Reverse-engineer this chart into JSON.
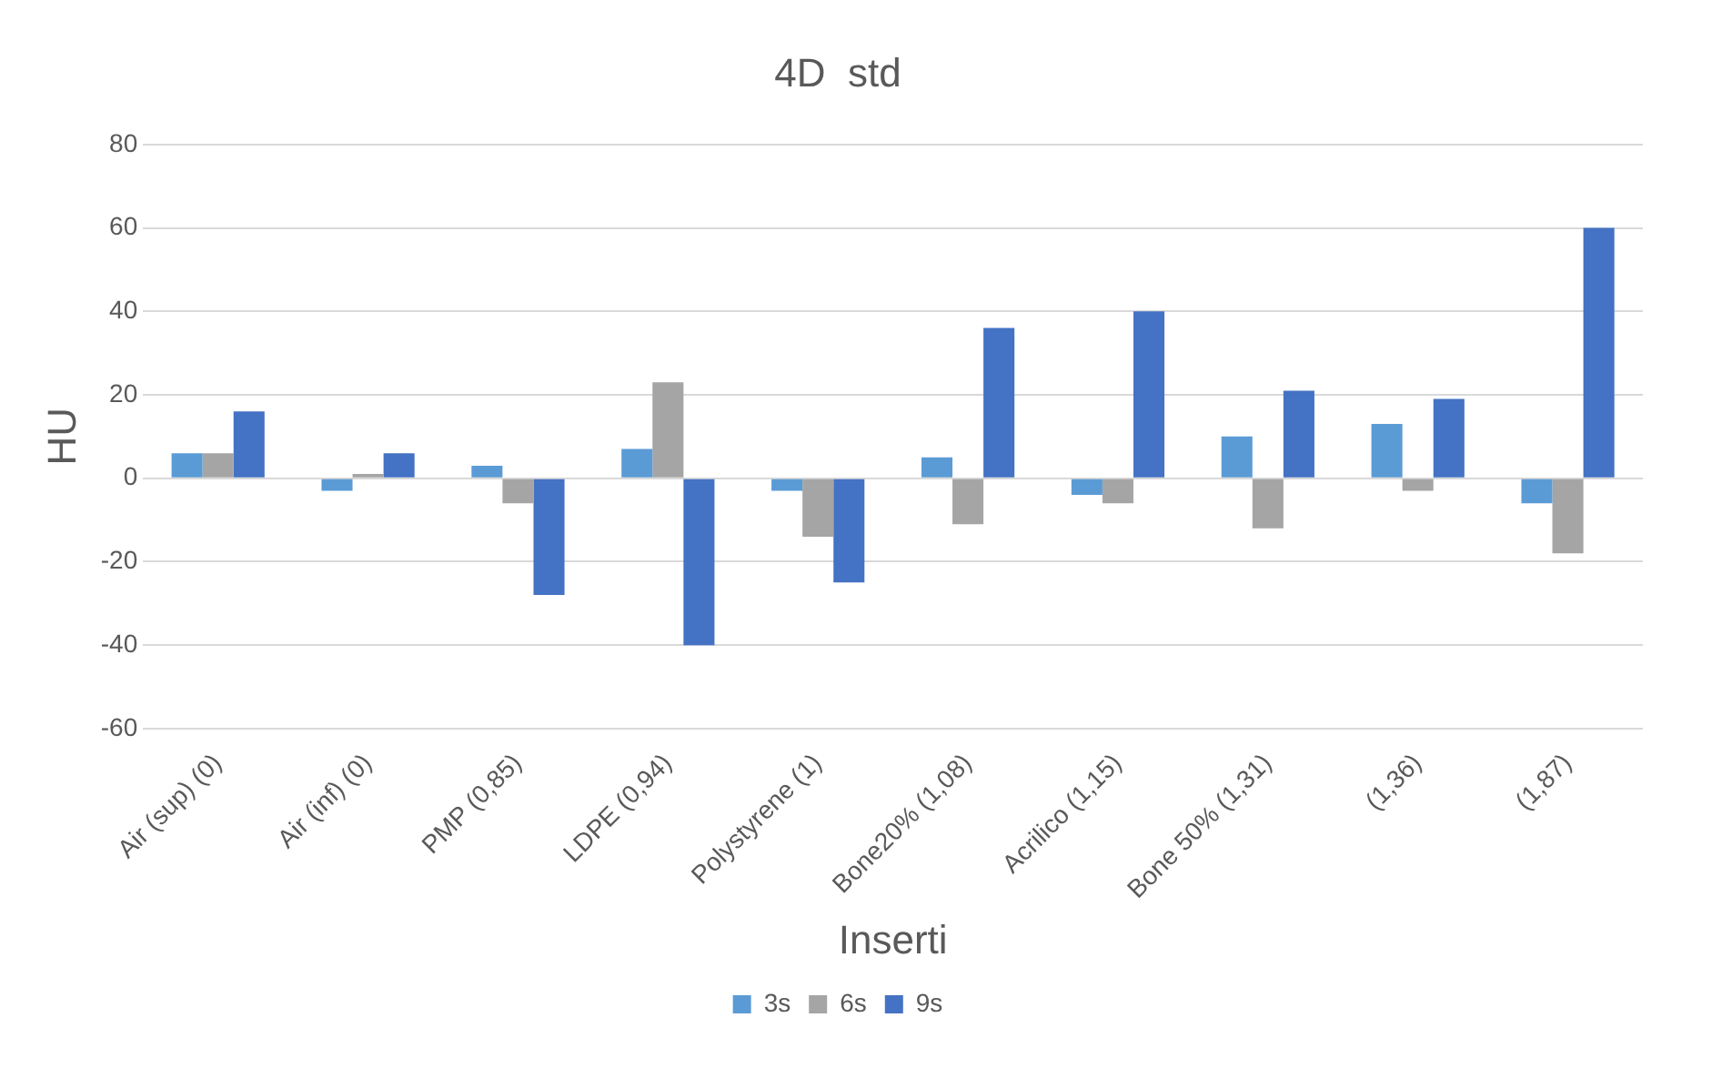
{
  "chart_data": {
    "type": "bar",
    "title": "4D  std",
    "xlabel": "Inserti",
    "ylabel": "HU",
    "categories": [
      "Air (sup) (0)",
      "Air (inf) (0)",
      "PMP (0,85)",
      "LDPE (0,94)",
      "Polystyrene (1)",
      "Bone20% (1,08)",
      "Acrilico (1,15)",
      "Bone 50% (1,31)",
      "(1,36)",
      "(1,87)"
    ],
    "series": [
      {
        "name": "3s",
        "color": "#5b9bd5",
        "values": [
          6,
          -3,
          3,
          7,
          -3,
          5,
          -4,
          10,
          13,
          -6
        ]
      },
      {
        "name": "6s",
        "color": "#a5a5a5",
        "values": [
          6,
          1,
          -6,
          23,
          -14,
          -11,
          -6,
          -12,
          -3,
          -18
        ]
      },
      {
        "name": "9s",
        "color": "#4472c4",
        "values": [
          16,
          6,
          -28,
          -40,
          -25,
          36,
          40,
          21,
          19,
          60
        ]
      }
    ],
    "ylim": [
      -60,
      80
    ],
    "yticks": [
      -60,
      -40,
      -20,
      0,
      20,
      40,
      60,
      80
    ],
    "grid": "y",
    "legend": "bottom"
  }
}
